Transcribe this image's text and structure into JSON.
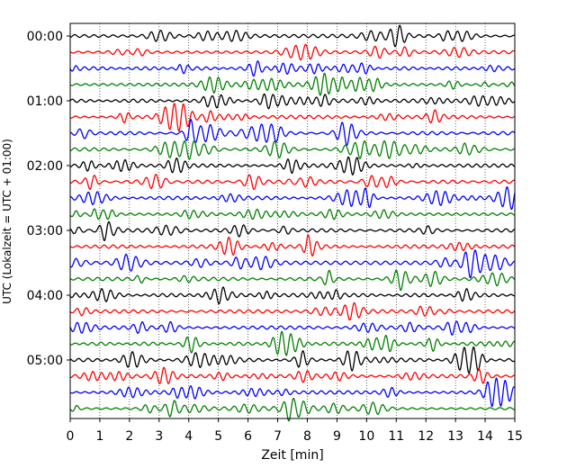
{
  "chart_data": {
    "type": "line",
    "title": "",
    "xlabel": "Zeit  [min]",
    "ylabel": "UTC (Lokalzeit = UTC + 01:00)",
    "xlim": [
      0,
      15
    ],
    "x_ticks": [
      "0",
      "1",
      "2",
      "3",
      "4",
      "5",
      "6",
      "7",
      "8",
      "9",
      "10",
      "11",
      "12",
      "13",
      "14",
      "15"
    ],
    "y_tick_labels": [
      "00:00",
      "01:00",
      "02:00",
      "03:00",
      "04:00",
      "05:00"
    ],
    "traces_per_hour": 4,
    "trace_minutes": 15,
    "trace_count": 24,
    "color_cycle": [
      "#000000",
      "#ff0000",
      "#0000ff",
      "#008000"
    ],
    "grid": "vertical dotted lines at each minute",
    "legend": "none"
  }
}
